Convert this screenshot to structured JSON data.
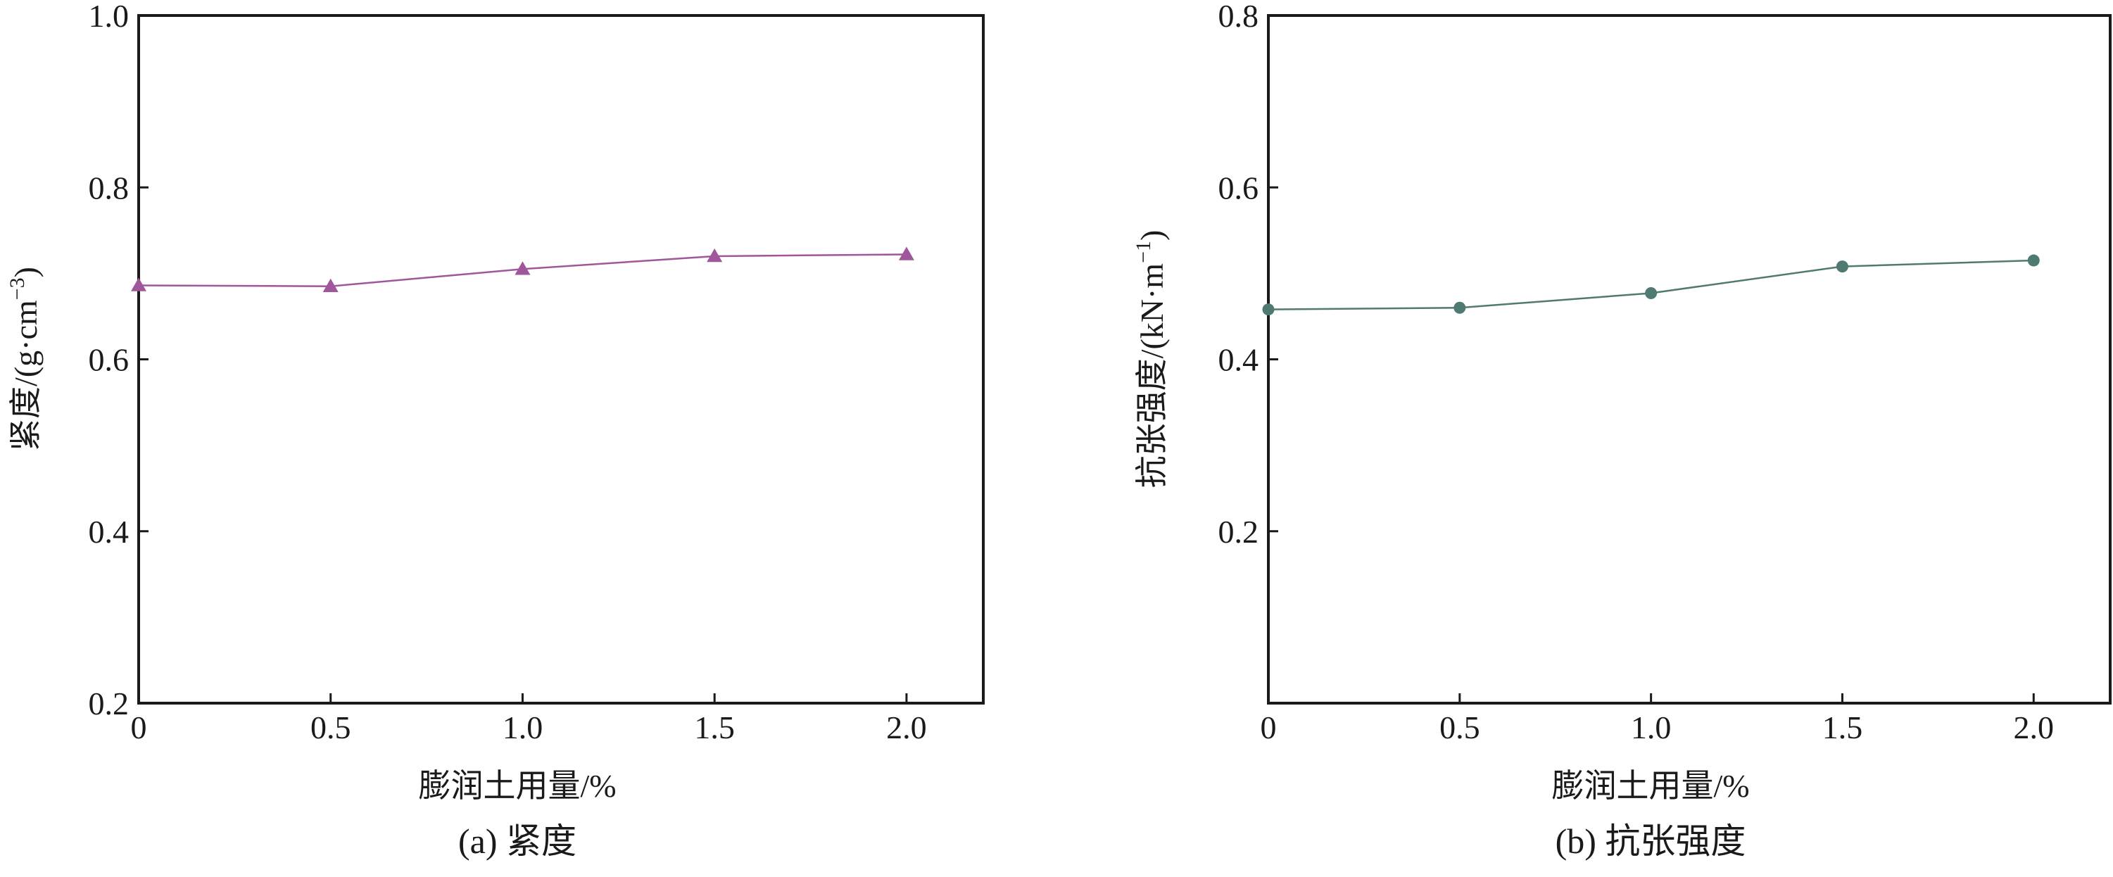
{
  "chart_data": [
    {
      "type": "line",
      "caption": "(a) 紧度",
      "xlabel": "膨润土用量/%",
      "ylabel": {
        "main": "紧度/(g·cm",
        "sup": "−3",
        "close": ")"
      },
      "xlim": [
        0,
        2.2
      ],
      "ylim": [
        0.2,
        1.0
      ],
      "xticks": [
        0,
        0.5,
        1.0,
        1.5,
        2.0
      ],
      "xtick_labels": [
        "0",
        "0.5",
        "1.0",
        "1.5",
        "2.0"
      ],
      "yticks": [
        0.2,
        0.4,
        0.6,
        0.8,
        1.0
      ],
      "ytick_labels": [
        "0.2",
        "0.4",
        "0.6",
        "0.8",
        "1.0"
      ],
      "marker": "triangle",
      "color": "#a0569b",
      "series": [
        {
          "x": [
            0,
            0.5,
            1.0,
            1.5,
            2.0
          ],
          "values": [
            0.686,
            0.685,
            0.705,
            0.72,
            0.722
          ]
        }
      ]
    },
    {
      "type": "line",
      "caption": "(b) 抗张强度",
      "xlabel": "膨润土用量/%",
      "ylabel": {
        "main": "抗张强度/(kN·m",
        "sup": "−1",
        "close": ")"
      },
      "xlim": [
        0,
        2.2
      ],
      "ylim": [
        0,
        0.8
      ],
      "xticks": [
        0,
        0.5,
        1.0,
        1.5,
        2.0
      ],
      "xtick_labels": [
        "0",
        "0.5",
        "1.0",
        "1.5",
        "2.0"
      ],
      "yticks": [
        0.2,
        0.4,
        0.6,
        0.8
      ],
      "ytick_labels": [
        "0.2",
        "0.4",
        "0.6",
        "0.8"
      ],
      "marker": "circle",
      "color": "#4f7a72",
      "series": [
        {
          "x": [
            0,
            0.5,
            1.0,
            1.5,
            2.0
          ],
          "values": [
            0.458,
            0.46,
            0.477,
            0.508,
            0.515
          ]
        }
      ]
    }
  ]
}
